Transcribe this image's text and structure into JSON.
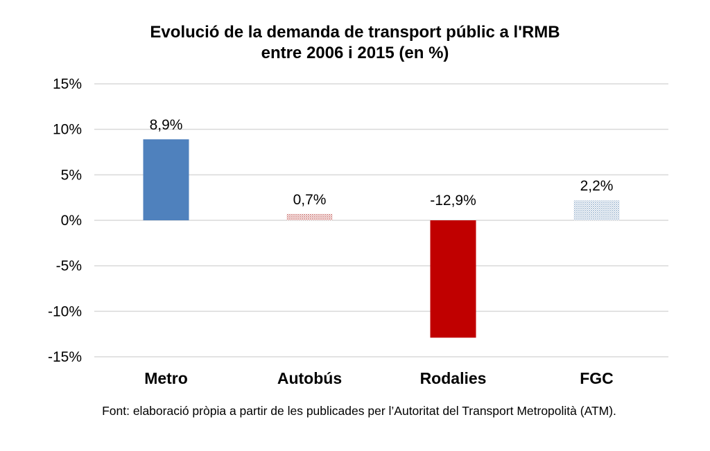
{
  "chart_data": {
    "type": "bar",
    "title_lines": [
      "Evolució de la demanda de transport públic a l'RMB",
      "entre 2006 i 2015 (en %)"
    ],
    "xlabel": "",
    "ylabel": "",
    "categories": [
      "Metro",
      "Autobús",
      "Rodalies",
      "FGC"
    ],
    "values": [
      8.9,
      0.7,
      -12.9,
      2.2
    ],
    "data_labels": [
      "8,9%",
      "0,7%",
      "-12,9%",
      "2,2%"
    ],
    "colors": [
      "#4f81bd",
      "#d99694",
      "#c00000",
      "#b7c9dc"
    ],
    "patterns": [
      "solid",
      "dotted",
      "solid",
      "dotted"
    ],
    "ylim": [
      -15,
      15
    ],
    "yticks": [
      15,
      10,
      5,
      0,
      -5,
      -10,
      -15
    ],
    "ytick_labels": [
      "15%",
      "10%",
      "5%",
      "0%",
      "-5%",
      "-10%",
      "-15%"
    ],
    "grid": true,
    "legend": "none"
  },
  "source_note": "Font: elaboració pròpia a partir de les publicades per l’Autoritat del Transport Metropolità (ATM)."
}
